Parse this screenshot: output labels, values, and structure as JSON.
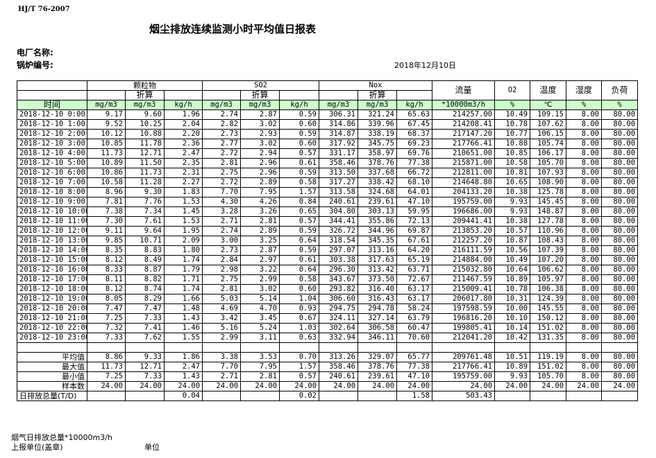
{
  "header": {
    "standard": "HJ/T  76-2007",
    "title": "烟尘排放连续监测小时平均值日报表",
    "plant_label": "电厂名称:",
    "boiler_label": "锅炉编号:",
    "date": "2018年12月10日"
  },
  "table": {
    "groups": [
      "颗粒物",
      "SO2",
      "Nox",
      "流量",
      "O2",
      "温度",
      "湿度",
      "负荷"
    ],
    "converted": "折算",
    "time_label": "时间",
    "units": [
      "mg/m3",
      "mg/m3",
      "kg/h",
      "mg/m3",
      "mg/m3",
      "kg/h",
      "mg/m3",
      "mg/m3",
      "kg/h",
      "*10000m3/h",
      "%",
      "℃",
      "%",
      "%"
    ],
    "rows": [
      [
        "2018-12-10 0:00",
        "9.17",
        "9.60",
        "1.96",
        "2.74",
        "2.87",
        "0.59",
        "306.31",
        "321.24",
        "65.63",
        "214257.00",
        "10.49",
        "109.15",
        "8.00",
        "80.00"
      ],
      [
        "2018-12-10 1:00",
        "9.52",
        "10.25",
        "2.04",
        "2.82",
        "3.02",
        "0.60",
        "314.86",
        "339.96",
        "67.45",
        "214208.41",
        "10.78",
        "107.62",
        "8.00",
        "80.00"
      ],
      [
        "2018-12-10 2:00",
        "10.12",
        "10.88",
        "2.20",
        "2.73",
        "2.93",
        "0.59",
        "314.87",
        "338.19",
        "68.37",
        "217147.20",
        "10.77",
        "106.15",
        "8.00",
        "80.00"
      ],
      [
        "2018-12-10 3:00",
        "10.85",
        "11.78",
        "2.36",
        "2.77",
        "3.02",
        "0.60",
        "317.92",
        "345.75",
        "69.23",
        "217766.41",
        "10.88",
        "105.74",
        "8.00",
        "80.00"
      ],
      [
        "2018-12-10 4:00",
        "11.73",
        "12.71",
        "2.47",
        "2.72",
        "2.94",
        "0.57",
        "331.17",
        "358.97",
        "69.76",
        "210651.00",
        "10.85",
        "106.17",
        "8.00",
        "80.00"
      ],
      [
        "2018-12-10 5:00",
        "10.89",
        "11.50",
        "2.35",
        "2.81",
        "2.96",
        "0.61",
        "358.46",
        "378.76",
        "77.38",
        "215871.00",
        "10.58",
        "105.70",
        "8.00",
        "80.00"
      ],
      [
        "2018-12-10 6:00",
        "10.86",
        "11.73",
        "2.31",
        "2.75",
        "2.96",
        "0.59",
        "313.50",
        "337.68",
        "66.72",
        "212811.00",
        "10.81",
        "107.93",
        "8.00",
        "80.00"
      ],
      [
        "2018-12-10 7:00",
        "10.58",
        "11.28",
        "2.27",
        "2.72",
        "2.89",
        "0.58",
        "317.27",
        "338.42",
        "68.10",
        "214648.80",
        "10.65",
        "108.90",
        "8.00",
        "80.00"
      ],
      [
        "2018-12-10 8:00",
        "8.96",
        "9.30",
        "1.83",
        "7.70",
        "7.95",
        "1.57",
        "313.58",
        "324.68",
        "64.01",
        "204133.20",
        "10.38",
        "125.78",
        "8.00",
        "80.00"
      ],
      [
        "2018-12-10 9:00",
        "7.81",
        "7.76",
        "1.53",
        "4.30",
        "4.26",
        "0.84",
        "240.61",
        "239.61",
        "47.10",
        "195759.00",
        "9.93",
        "145.45",
        "8.00",
        "80.00"
      ],
      [
        "2018-12-10 10:00",
        "7.38",
        "7.34",
        "1.45",
        "3.28",
        "3.26",
        "0.65",
        "304.80",
        "303.13",
        "59.95",
        "196686.00",
        "9.93",
        "148.87",
        "8.00",
        "80.00"
      ],
      [
        "2018-12-10 11:00",
        "7.30",
        "7.61",
        "1.53",
        "2.71",
        "2.81",
        "0.57",
        "344.41",
        "355.86",
        "72.13",
        "209441.41",
        "10.38",
        "127.78",
        "8.00",
        "80.00"
      ],
      [
        "2018-12-10 12:00",
        "9.11",
        "9.64",
        "1.95",
        "2.74",
        "2.89",
        "0.59",
        "326.72",
        "344.96",
        "69.87",
        "213853.20",
        "10.57",
        "110.96",
        "8.00",
        "80.00"
      ],
      [
        "2018-12-10 13:00",
        "9.85",
        "10.71",
        "2.09",
        "3.00",
        "3.25",
        "0.64",
        "318.54",
        "345.35",
        "67.61",
        "212257.20",
        "10.87",
        "108.43",
        "8.00",
        "80.00"
      ],
      [
        "2018-12-10 14:00",
        "8.35",
        "8.83",
        "1.80",
        "2.73",
        "2.87",
        "0.59",
        "297.07",
        "313.16",
        "64.20",
        "216111.59",
        "10.56",
        "107.39",
        "8.00",
        "80.00"
      ],
      [
        "2018-12-10 15:00",
        "8.12",
        "8.49",
        "1.74",
        "2.84",
        "2.97",
        "0.61",
        "303.38",
        "317.63",
        "65.19",
        "214884.00",
        "10.49",
        "107.20",
        "8.00",
        "80.00"
      ],
      [
        "2018-12-10 16:00",
        "8.33",
        "8.87",
        "1.79",
        "2.98",
        "3.22",
        "0.64",
        "296.30",
        "313.42",
        "63.71",
        "215032.80",
        "10.64",
        "106.62",
        "8.00",
        "80.00"
      ],
      [
        "2018-12-10 17:00",
        "8.11",
        "8.82",
        "1.71",
        "2.75",
        "2.99",
        "0.58",
        "343.67",
        "373.50",
        "72.67",
        "211467.59",
        "10.89",
        "105.97",
        "8.00",
        "80.00"
      ],
      [
        "2018-12-10 18:00",
        "8.12",
        "8.74",
        "1.74",
        "2.81",
        "3.02",
        "0.60",
        "293.82",
        "316.40",
        "63.17",
        "215009.41",
        "10.78",
        "106.38",
        "8.00",
        "80.00"
      ],
      [
        "2018-12-10 19:00",
        "8.05",
        "8.29",
        "1.66",
        "5.03",
        "5.14",
        "1.04",
        "306.60",
        "316.43",
        "63.17",
        "206017.80",
        "10.31",
        "124.39",
        "8.00",
        "80.00"
      ],
      [
        "2018-12-10 20:00",
        "7.47",
        "7.47",
        "1.48",
        "4.69",
        "4.70",
        "0.93",
        "294.75",
        "294.78",
        "58.24",
        "197598.59",
        "10.00",
        "145.55",
        "8.00",
        "80.00"
      ],
      [
        "2018-12-10 21:00",
        "7.25",
        "7.33",
        "1.43",
        "3.42",
        "3.45",
        "0.67",
        "324.11",
        "327.14",
        "63.79",
        "196816.20",
        "10.10",
        "150.12",
        "8.00",
        "80.00"
      ],
      [
        "2018-12-10 22:00",
        "7.32",
        "7.41",
        "1.46",
        "5.16",
        "5.24",
        "1.03",
        "302.64",
        "306.58",
        "60.47",
        "199805.41",
        "10.14",
        "151.02",
        "8.00",
        "80.00"
      ],
      [
        "2018-12-10 23:00",
        "7.33",
        "7.62",
        "1.55",
        "2.99",
        "3.11",
        "0.63",
        "332.94",
        "346.11",
        "70.60",
        "212041.20",
        "10.42",
        "131.35",
        "8.00",
        "80.00"
      ]
    ],
    "summary": [
      [
        "平均值",
        "8.86",
        "9.33",
        "1.86",
        "3.38",
        "3.53",
        "0.70",
        "313.26",
        "329.07",
        "65.77",
        "209761.48",
        "10.51",
        "119.19",
        "8.00",
        "80.00"
      ],
      [
        "最大值",
        "11.73",
        "12.71",
        "2.47",
        "7.70",
        "7.95",
        "1.57",
        "358.46",
        "378.76",
        "77.38",
        "217766.41",
        "10.89",
        "151.02",
        "8.00",
        "80.00"
      ],
      [
        "最小值",
        "7.25",
        "7.33",
        "1.43",
        "2.71",
        "2.81",
        "0.57",
        "240.61",
        "239.61",
        "47.10",
        "195759.00",
        "9.93",
        "105.70",
        "8.00",
        "80.00"
      ],
      [
        "样本数",
        "24.00",
        "24.00",
        "24.00",
        "24.00",
        "24.00",
        "24.00",
        "24.00",
        "24.00",
        "24.00",
        "24.00",
        "24.00",
        "24.00",
        "24.00",
        "24.00"
      ],
      [
        "日排放总量(T/D)",
        "",
        "",
        "0.04",
        "",
        "",
        "0.02",
        "",
        "",
        "1.58",
        "503.43",
        "",
        "",
        "",
        ""
      ]
    ]
  },
  "footer": {
    "flue_total": "烟气日排放总量*10000m3/h",
    "report_unit": "上报单位(盖章)",
    "unit": "单位"
  }
}
